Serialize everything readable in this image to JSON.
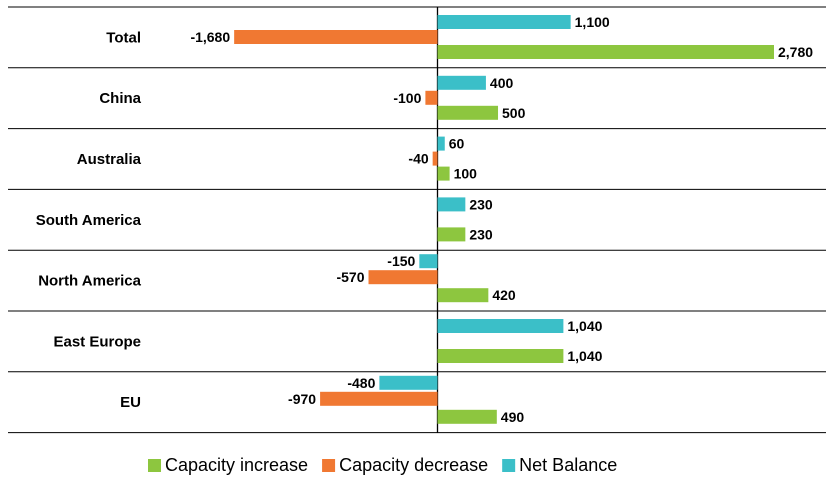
{
  "chart_data": {
    "type": "bar",
    "orientation": "horizontal",
    "categories": [
      "Total",
      "China",
      "Australia",
      "South America",
      "North America",
      "East Europe",
      "EU"
    ],
    "series": [
      {
        "name": "Net Balance",
        "color": "#3BBFC8",
        "values": [
          1100,
          400,
          60,
          230,
          -150,
          1040,
          -480
        ],
        "labels": [
          "1,100",
          "400",
          "60",
          "230",
          "-150",
          "1,040",
          "-480"
        ]
      },
      {
        "name": "Capacity decrease",
        "color": "#F07832",
        "values": [
          -1680,
          -100,
          -40,
          null,
          -570,
          null,
          -970
        ],
        "labels": [
          "-1,680",
          "-100",
          "-40",
          "",
          "-570",
          "",
          "-970"
        ]
      },
      {
        "name": "Capacity increase",
        "color": "#8DC63F",
        "values": [
          2780,
          500,
          100,
          230,
          420,
          1040,
          490
        ],
        "labels": [
          "2,780",
          "500",
          "100",
          "230",
          "420",
          "1,040",
          "490"
        ]
      }
    ],
    "legend_order": [
      "Capacity increase",
      "Capacity decrease",
      "Net Balance"
    ],
    "legend_position": "bottom",
    "xlim": [
      -2000,
      2800
    ],
    "grid": false
  }
}
